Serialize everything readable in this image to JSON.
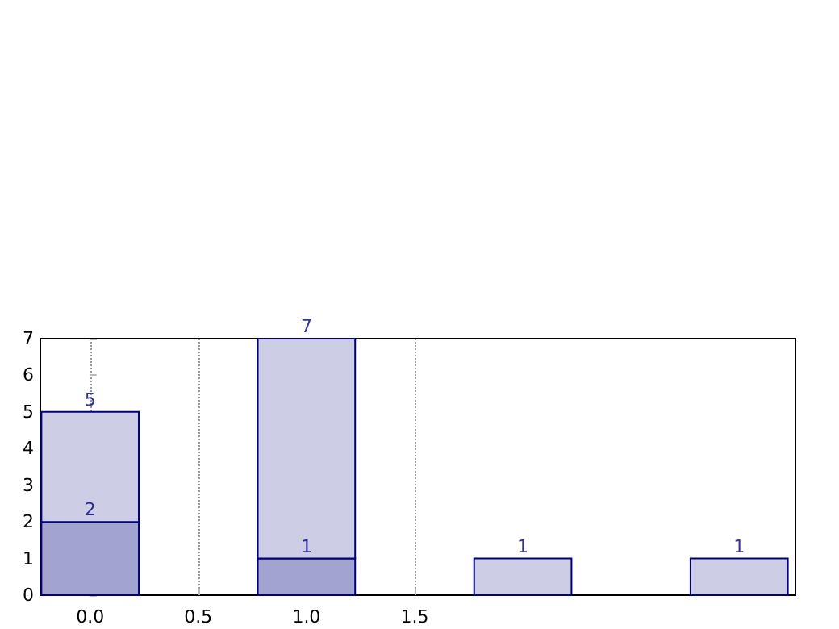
{
  "chart_data": {
    "type": "bar",
    "x": [
      0,
      1,
      2,
      3
    ],
    "stacked": true,
    "series": [
      {
        "color": "#a3a3cf",
        "values": [
          2,
          1,
          null,
          null
        ],
        "value_labels": [
          "2",
          "1",
          null,
          null
        ]
      },
      {
        "color": "#cdcde5",
        "values": [
          3,
          6,
          1,
          1
        ]
      }
    ],
    "totals": [
      "5",
      "7",
      "1",
      "1"
    ],
    "xlim": [
      -0.23,
      3.26
    ],
    "xticks": [
      {
        "value": 0,
        "label": "0.0"
      },
      {
        "value": 0.5,
        "label": "0.5"
      },
      {
        "value": 1,
        "label": "1.0"
      },
      {
        "value": 1.5,
        "label": "1.5"
      }
    ],
    "ylim": [
      0,
      7
    ],
    "yticks": [
      0,
      1,
      2,
      3,
      4,
      5,
      6,
      7
    ],
    "grid": "x"
  }
}
